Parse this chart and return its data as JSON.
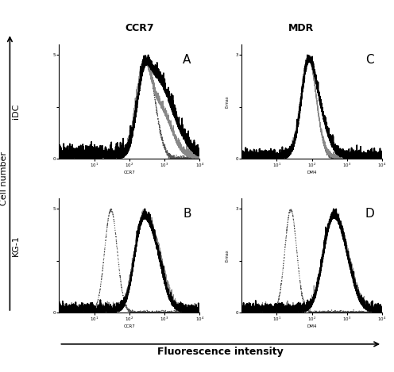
{
  "title_top_left": "CCR7",
  "title_top_right": "MDR",
  "label_left_top": "iDC",
  "label_left_bottom": "KG-1",
  "panel_labels": [
    "A",
    "B",
    "C",
    "D"
  ],
  "xlabel": "Fluorescence intensity",
  "ylabel": "Cell number",
  "background_color": "#ffffff",
  "text_color": "#000000",
  "seed": 42
}
